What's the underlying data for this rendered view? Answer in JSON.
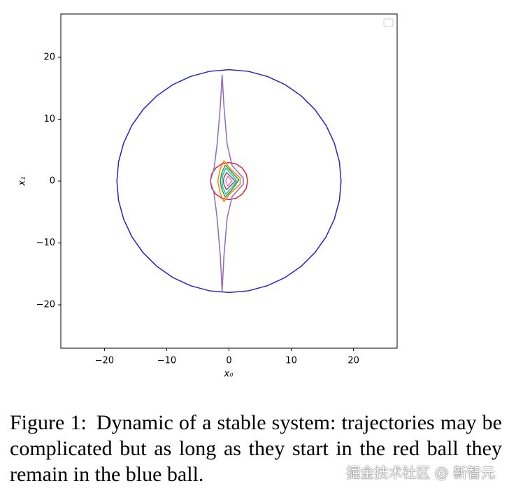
{
  "chart_data": {
    "type": "line",
    "x_label": "x₀",
    "y_label": "x₁",
    "xlim": [
      -27,
      27
    ],
    "ylim": [
      -27,
      27
    ],
    "xticks": [
      {
        "value": -20,
        "label": "−20"
      },
      {
        "value": -10,
        "label": "−10"
      },
      0,
      10,
      20
    ],
    "yticks": [
      {
        "value": -20,
        "label": "−20"
      },
      {
        "value": -10,
        "label": "−10"
      },
      0,
      10,
      20
    ],
    "series": [
      {
        "color": "#2424c0",
        "x": [
          18,
          17.73,
          16.91,
          15.59,
          13.79,
          11.57,
          9,
          6.16,
          3.13,
          0,
          -3.13,
          -6.16,
          -9,
          -11.57,
          -13.79,
          -15.59,
          -16.91,
          -17.73,
          -18,
          -17.73,
          -16.91,
          -15.59,
          -13.79,
          -11.57,
          -9,
          -6.16,
          -3.13,
          0,
          3.13,
          6.16,
          9,
          11.57,
          13.79,
          15.59,
          16.91,
          17.73,
          18
        ],
        "values": [
          0,
          3.13,
          6.16,
          9,
          11.57,
          13.79,
          15.59,
          16.91,
          17.73,
          18,
          17.73,
          16.91,
          15.59,
          13.79,
          11.57,
          9,
          6.16,
          3.13,
          0,
          -3.13,
          -6.16,
          -9,
          -11.57,
          -13.79,
          -15.59,
          -16.91,
          -17.73,
          -18,
          -17.73,
          -16.91,
          -15.59,
          -13.79,
          -11.57,
          -9,
          -6.16,
          -3.13,
          0
        ]
      },
      {
        "color": "#d62728",
        "x": [
          3,
          2.77,
          2.12,
          1.15,
          0,
          -1.15,
          -2.12,
          -2.77,
          -3,
          -2.77,
          -2.12,
          -1.15,
          0,
          1.15,
          2.12,
          2.77,
          3
        ],
        "values": [
          0,
          1.15,
          2.12,
          2.77,
          3,
          2.77,
          2.12,
          1.15,
          0,
          -1.15,
          -2.12,
          -2.77,
          -3,
          -2.77,
          -2.12,
          -1.15,
          0
        ]
      },
      {
        "color": "#9467bd",
        "x": [
          -1.1,
          -0.8,
          -0.3,
          0.5,
          2.3,
          2.3,
          0.5,
          -0.3,
          -0.8,
          -1.1,
          -1.4,
          -1.9,
          -2.4,
          -3,
          -2.4,
          -1.9,
          -1.4,
          -1.1
        ],
        "values": [
          17.2,
          12,
          6,
          2.5,
          0.5,
          -0.5,
          -2.5,
          -6,
          -12,
          -17.8,
          -12,
          -6,
          -2,
          0,
          2,
          6,
          12,
          17.2
        ]
      },
      {
        "color": "#ff7f0e",
        "x": [
          -0.8,
          0.2,
          1.8,
          1.8,
          0.2,
          -0.8,
          -1.4,
          -1.8,
          -1.4,
          -0.8
        ],
        "values": [
          3.3,
          2,
          0.5,
          -0.5,
          -2,
          -3.3,
          -2,
          0,
          2,
          3.3
        ]
      },
      {
        "color": "#2ca02c",
        "x": [
          -0.6,
          0.4,
          1.6,
          0.4,
          -0.6,
          -1.2,
          -1.4,
          -1.2,
          -0.6
        ],
        "values": [
          2.6,
          1.5,
          0.2,
          -1.5,
          -2.6,
          -1.2,
          0,
          1.2,
          2.6
        ]
      },
      {
        "color": "#17becf",
        "x": [
          -0.5,
          0.4,
          1.3,
          0.4,
          -0.5,
          -1,
          -1.1,
          -1,
          -0.5
        ],
        "values": [
          2.1,
          1.1,
          0,
          -1.1,
          -2.1,
          -1,
          0,
          1,
          2.1
        ]
      },
      {
        "color": "#8c564b",
        "x": [
          -0.4,
          0.3,
          1,
          0.3,
          -0.4,
          -0.8,
          -0.9,
          -0.8,
          -0.4
        ],
        "values": [
          1.4,
          0.7,
          0,
          -0.7,
          -1.4,
          -0.6,
          0,
          0.6,
          1.4
        ]
      },
      {
        "color": "#e377c2",
        "x": [
          -0.2,
          0.5,
          -0.2,
          -0.5,
          -0.2
        ],
        "values": [
          0.8,
          0,
          -0.8,
          0,
          0.8
        ]
      }
    ]
  },
  "caption": {
    "label": "Figure 1:",
    "text": "Dynamic of a stable system: trajectories may be complicated but as long as they start in the red ball they remain in the blue ball."
  },
  "watermark": "掘金技术社区 @ 新智元"
}
